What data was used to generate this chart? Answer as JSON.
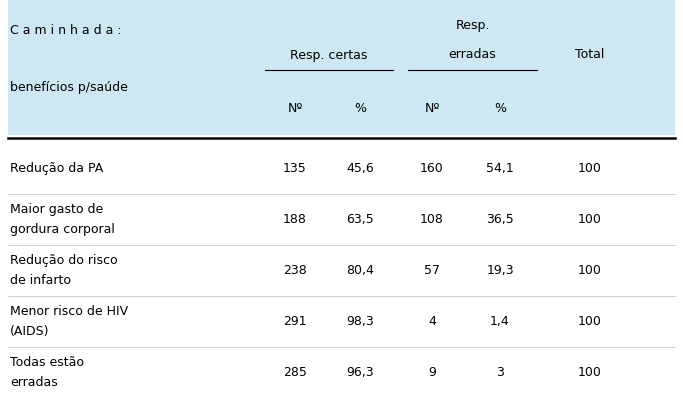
{
  "header_bg": "#cde8f2",
  "fig_bg": "#ffffff",
  "col1_header_line1": "C a m i n h a d a :",
  "col1_header_line2": "benefícios p/saúde",
  "col_group1": "Resp. certas",
  "col_group2_line1": "Resp.",
  "col_group2_line2": "erradas",
  "col_total": "Total",
  "sub_headers": [
    "Nº",
    "%",
    "Nº",
    "%"
  ],
  "rows": [
    {
      "label": "Redução da PA",
      "label2": "",
      "v1": "135",
      "v2": "45,6",
      "v3": "160",
      "v4": "54,1",
      "total": "100"
    },
    {
      "label": "Maior gasto de",
      "label2": "gordura corporal",
      "v1": "188",
      "v2": "63,5",
      "v3": "108",
      "v4": "36,5",
      "total": "100"
    },
    {
      "label": "Redução do risco",
      "label2": "de infarto",
      "v1": "238",
      "v2": "80,4",
      "v3": "57",
      "v4": "19,3",
      "total": "100"
    },
    {
      "label": "Menor risco de HIV",
      "label2": "(AIDS)",
      "v1": "291",
      "v2": "98,3",
      "v3": "4",
      "v4": "1,4",
      "total": "100"
    },
    {
      "label": "Todas estão",
      "label2": "erradas",
      "v1": "285",
      "v2": "96,3",
      "v3": "9",
      "v4": "3",
      "total": "100"
    }
  ],
  "font_size": 9.0,
  "font_family": "DejaVu Sans"
}
